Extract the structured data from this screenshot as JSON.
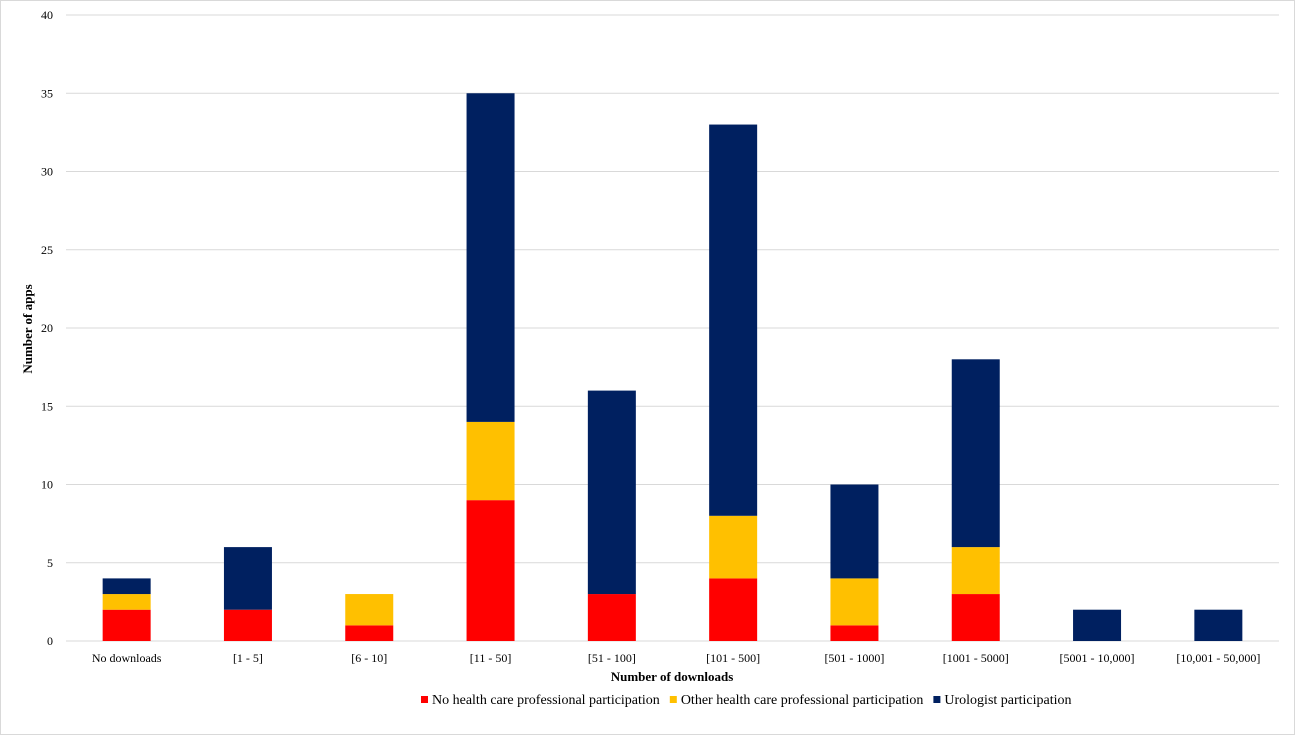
{
  "chart_data": {
    "type": "bar",
    "stacked": true,
    "title": "",
    "xlabel": "Number  of downloads",
    "ylabel": "Number  of apps",
    "ylim": [
      0,
      40
    ],
    "yticks": [
      0,
      5,
      10,
      15,
      20,
      25,
      30,
      35,
      40
    ],
    "grid": true,
    "legend_position": "bottom",
    "categories": [
      "No downloads",
      "[1 - 5]",
      "[6 - 10]",
      "[11 - 50]",
      "[51 - 100]",
      "[101 - 500]",
      "[501 - 1000]",
      "[1001 - 5000]",
      "[5001 - 10,000]",
      "[10,001 - 50,000]"
    ],
    "series": [
      {
        "name": "No health care professional participation",
        "color": "#ff0000",
        "values": [
          2,
          2,
          1,
          9,
          3,
          4,
          1,
          3,
          0,
          0
        ]
      },
      {
        "name": "Other health care professional participation",
        "color": "#ffc000",
        "values": [
          1,
          0,
          2,
          5,
          0,
          4,
          3,
          3,
          0,
          0
        ]
      },
      {
        "name": "Urologist participation",
        "color": "#002060",
        "values": [
          1,
          4,
          0,
          21,
          13,
          25,
          6,
          12,
          2,
          2
        ]
      }
    ]
  }
}
